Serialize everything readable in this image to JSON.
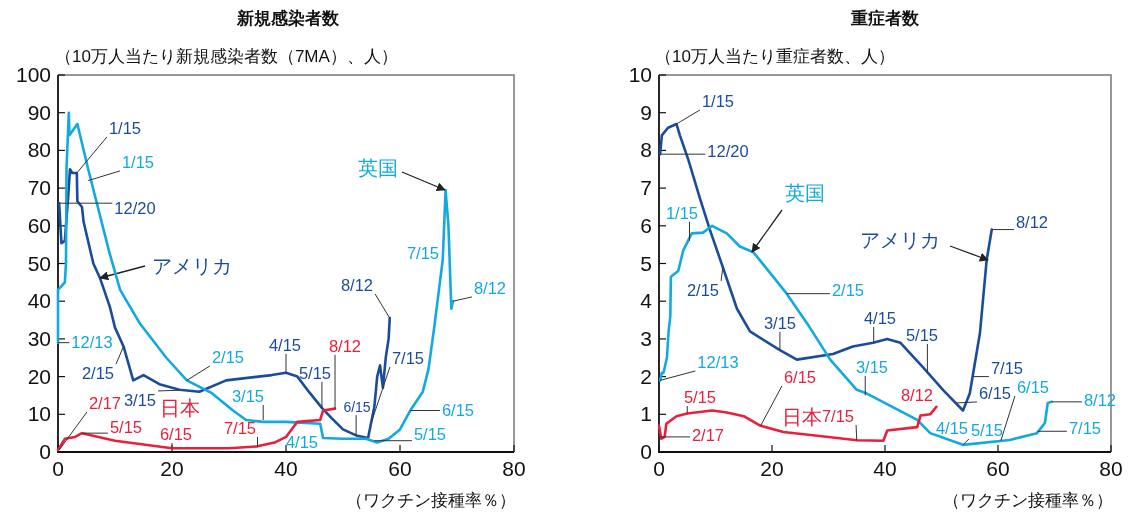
{
  "chart_data": [
    {
      "type": "line",
      "title": "新規感染者数",
      "subtitle": "（10万人当たり新規感染者数（7MA）、人）",
      "xlabel": "（ワクチン接種率％）",
      "xlim": [
        0,
        80
      ],
      "xticks": [
        0,
        20,
        40,
        60,
        80
      ],
      "ylim": [
        0,
        100
      ],
      "yticks": [
        0,
        10,
        20,
        30,
        40,
        50,
        60,
        70,
        80,
        90,
        100
      ],
      "series": [
        {
          "name": "アメリカ",
          "color": "#1a4c9c",
          "x": [
            0.2,
            0.6,
            1.2,
            1.8,
            2.1,
            2.5,
            3.3,
            3.4,
            4.2,
            4.5,
            6.2,
            7.4,
            9.1,
            10,
            11.5,
            13.2,
            15,
            17.8,
            21.3,
            24.8,
            29.5,
            37.5,
            40,
            42,
            44,
            46.3,
            48,
            50,
            52.3,
            54.4,
            55.5,
            56,
            56.5,
            57,
            57.5,
            58,
            58.2
          ],
          "values": [
            66,
            55.4,
            56,
            68,
            75,
            74,
            74,
            66.5,
            65,
            61,
            50,
            46,
            38.5,
            33,
            28,
            19,
            20.4,
            18,
            16.5,
            16,
            19,
            20.4,
            21,
            20,
            16,
            11.7,
            9,
            6,
            4.4,
            3.7,
            12,
            20,
            23,
            17,
            25,
            30,
            35.5
          ]
        },
        {
          "name": "英国",
          "color": "#12a9e0",
          "x": [
            0,
            0,
            1.2,
            1.4,
            1.5,
            1.9,
            2,
            3.4,
            5.3,
            9,
            10.9,
            14.4,
            19,
            22.6,
            27,
            30.7,
            33,
            36,
            40,
            46,
            46.5,
            50,
            54,
            56,
            58,
            60,
            61.8,
            64,
            65,
            66,
            67,
            67.5,
            68,
            68.5,
            69,
            69.3
          ],
          "values": [
            29,
            43,
            45,
            50,
            75.6,
            90,
            84,
            87,
            75,
            53,
            43,
            34,
            25,
            19,
            15.6,
            11,
            8.5,
            8,
            8,
            7.5,
            3.7,
            3.5,
            3.5,
            2.5,
            3.5,
            6,
            11,
            16,
            22,
            33,
            45,
            51,
            69.5,
            60,
            38,
            40
          ]
        },
        {
          "name": "日本",
          "color": "#e8203c",
          "x": [
            0,
            0.6,
            1.2,
            3,
            4.2,
            10,
            20,
            30,
            35,
            38,
            40,
            42,
            46,
            46.5,
            48.6
          ],
          "values": [
            0.5,
            2,
            3.5,
            4,
            5,
            3,
            1,
            1,
            1.5,
            2.5,
            4,
            8,
            8.5,
            11,
            11.5
          ]
        }
      ],
      "annotations": [
        {
          "text": "1/15",
          "x": 3.3,
          "y": 74
        },
        {
          "text": "1/15",
          "x": 5.3,
          "y": 72
        },
        {
          "text": "12/20",
          "x": 0.2,
          "y": 66
        },
        {
          "text": "12/13",
          "x": 0,
          "y": 29
        },
        {
          "text": "2/15",
          "x": 11.5,
          "y": 28
        },
        {
          "text": "3/15",
          "x": 21.4,
          "y": 16.4
        },
        {
          "text": "2/15",
          "x": 22.6,
          "y": 19
        },
        {
          "text": "4/15",
          "x": 40,
          "y": 21
        },
        {
          "text": "5/15",
          "x": 46.3,
          "y": 11.6
        },
        {
          "text": "8/12",
          "x": 48.6,
          "y": 11.5
        },
        {
          "text": "6/15",
          "x": 52.3,
          "y": 4.4
        },
        {
          "text": "7/15",
          "x": 55,
          "y": 8
        },
        {
          "text": "5/15",
          "x": 55.5,
          "y": 3
        },
        {
          "text": "4/15",
          "x": 46.5,
          "y": 3.7
        },
        {
          "text": "3/15",
          "x": 36,
          "y": 8.5
        },
        {
          "text": "6/15",
          "x": 61.8,
          "y": 11
        },
        {
          "text": "7/15",
          "x": 67.5,
          "y": 51
        },
        {
          "text": "8/12",
          "x": 69.3,
          "y": 40
        },
        {
          "text": "2/17",
          "x": 0.2,
          "y": 0.5
        },
        {
          "text": "5/15",
          "x": 4.2,
          "y": 5
        },
        {
          "text": "6/15",
          "x": 20,
          "y": 1
        },
        {
          "text": "7/15",
          "x": 35,
          "y": 1.5
        },
        {
          "text": "8/12",
          "x": 58.2,
          "y": 35.5
        }
      ]
    },
    {
      "type": "line",
      "title": "重症者数",
      "subtitle": "（10万人当たり重症者数、人）",
      "xlabel": "（ワクチン接種率％）",
      "xlim": [
        0,
        80
      ],
      "xticks": [
        0,
        20,
        40,
        60,
        80
      ],
      "ylim": [
        0,
        10
      ],
      "yticks": [
        0,
        1,
        2,
        3,
        4,
        5,
        6,
        7,
        8,
        9,
        10
      ],
      "series": [
        {
          "name": "アメリカ",
          "color": "#1a4c9c",
          "x": [
            0.2,
            0.5,
            1.6,
            3.1,
            3.7,
            5.2,
            7.3,
            9,
            11.3,
            13.8,
            16.1,
            21.4,
            24.4,
            30.8,
            34.3,
            37.9,
            40.4,
            42.7,
            46.7,
            50.3,
            53.8,
            55,
            56.8,
            58,
            58.9
          ],
          "values": [
            7.9,
            8.4,
            8.6,
            8.7,
            8.4,
            7.75,
            6.7,
            5.9,
            4.9,
            3.8,
            3.2,
            2.7,
            2.45,
            2.6,
            2.8,
            2.9,
            3.0,
            2.9,
            2.25,
            1.64,
            1.1,
            1.55,
            3.15,
            5.1,
            5.9
          ]
        },
        {
          "name": "英国",
          "color": "#12a9e0",
          "x": [
            0.2,
            0.5,
            0.8,
            1.4,
            1.7,
            2,
            2.1,
            3.4,
            4.3,
            5.8,
            7.8,
            9.4,
            12,
            14.3,
            16.7,
            22.6,
            26.7,
            30.3,
            35,
            36.8,
            45.7,
            48,
            53.8,
            62.1,
            66.9,
            68.3,
            68.8,
            69.5
          ],
          "values": [
            1.9,
            2.1,
            2.1,
            2.5,
            3.2,
            3.6,
            4.65,
            4.8,
            5.35,
            5.8,
            5.82,
            6.0,
            5.8,
            5.45,
            5.3,
            4.2,
            3.3,
            2.45,
            1.65,
            1.55,
            0.85,
            0.5,
            0.19,
            0.32,
            0.5,
            0.77,
            1.3,
            1.33
          ]
        },
        {
          "name": "日本",
          "color": "#e8203c",
          "x": [
            0,
            0.4,
            1,
            1.3,
            3.1,
            5,
            9.4,
            12,
            15,
            17.9,
            22,
            30,
            35,
            39.7,
            40.4,
            45.7,
            46.3,
            48,
            49.1
          ],
          "values": [
            0.7,
            0.35,
            0.4,
            0.75,
            0.95,
            1.02,
            1.1,
            1.05,
            0.95,
            0.7,
            0.53,
            0.4,
            0.31,
            0.3,
            0.57,
            0.66,
            0.97,
            1.0,
            1.2
          ]
        }
      ],
      "annotations": [
        {
          "text": "1/15",
          "x": 3.1,
          "y": 8.7
        },
        {
          "text": "12/20",
          "x": 0.2,
          "y": 7.9
        },
        {
          "text": "1/15",
          "x": 5.4,
          "y": 5.6
        },
        {
          "text": "2/15",
          "x": 11.3,
          "y": 4.9
        },
        {
          "text": "2/15",
          "x": 22.6,
          "y": 4.2
        },
        {
          "text": "3/15",
          "x": 21.4,
          "y": 2.7
        },
        {
          "text": "4/15",
          "x": 38,
          "y": 2.9
        },
        {
          "text": "5/15",
          "x": 47.5,
          "y": 2.1
        },
        {
          "text": "6/15",
          "x": 52.5,
          "y": 1.3
        },
        {
          "text": "7/15",
          "x": 55.5,
          "y": 2.0
        },
        {
          "text": "8/12",
          "x": 58.9,
          "y": 5.9
        },
        {
          "text": "3/15",
          "x": 36.5,
          "y": 1.5
        },
        {
          "text": "12/13",
          "x": 0.2,
          "y": 1.9
        },
        {
          "text": "4/15",
          "x": 48,
          "y": 0.5
        },
        {
          "text": "5/15",
          "x": 53.8,
          "y": 0.19
        },
        {
          "text": "6/15",
          "x": 60.5,
          "y": 0.3
        },
        {
          "text": "7/15",
          "x": 67,
          "y": 0.55
        },
        {
          "text": "8/12",
          "x": 69.5,
          "y": 1.33
        },
        {
          "text": "5/15",
          "x": 5,
          "y": 1.02
        },
        {
          "text": "2/17",
          "x": 0,
          "y": 0.4
        },
        {
          "text": "6/15",
          "x": 18,
          "y": 0.7
        },
        {
          "text": "7/15",
          "x": 35,
          "y": 0.31
        },
        {
          "text": "8/12",
          "x": 49.1,
          "y": 1.2
        }
      ]
    }
  ]
}
